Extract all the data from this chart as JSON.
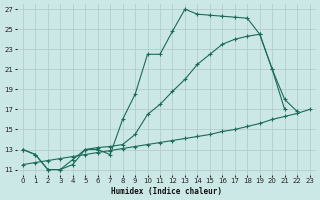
{
  "xlabel": "Humidex (Indice chaleur)",
  "background_color": "#cce8e6",
  "grid_color": "#b0c8c6",
  "line_color": "#1a6b5a",
  "xlim": [
    -0.5,
    23.5
  ],
  "ylim": [
    10.5,
    27.5
  ],
  "yticks": [
    11,
    13,
    15,
    17,
    19,
    21,
    23,
    25,
    27
  ],
  "xticks": [
    0,
    1,
    2,
    3,
    4,
    5,
    6,
    7,
    8,
    9,
    10,
    11,
    12,
    13,
    14,
    15,
    16,
    17,
    18,
    19,
    20,
    21,
    22,
    23
  ],
  "series1_x": [
    0,
    1,
    2,
    3,
    4,
    5,
    6,
    7,
    8,
    9,
    10,
    11,
    12,
    13,
    14,
    15,
    16,
    17,
    18,
    19,
    20,
    21
  ],
  "series1_y": [
    13.0,
    12.5,
    11.0,
    11.0,
    12.0,
    13.0,
    13.0,
    12.5,
    16.0,
    18.5,
    22.5,
    22.5,
    24.8,
    27.0,
    26.5,
    26.4,
    26.3,
    26.2,
    26.1,
    24.5,
    21.0,
    17.0
  ],
  "series2_x": [
    0,
    1,
    2,
    3,
    4,
    5,
    6,
    7,
    8,
    9,
    10,
    11,
    12,
    13,
    14,
    15,
    16,
    17,
    18,
    19,
    20,
    21,
    22
  ],
  "series2_y": [
    13.0,
    12.5,
    11.0,
    11.0,
    11.5,
    13.0,
    13.2,
    13.3,
    13.5,
    14.5,
    16.5,
    17.5,
    18.8,
    20.0,
    21.5,
    22.5,
    23.5,
    24.0,
    24.3,
    24.5,
    21.0,
    18.0,
    16.8
  ],
  "series3_x": [
    0,
    1,
    2,
    3,
    4,
    5,
    6,
    7,
    8,
    9,
    10,
    11,
    12,
    13,
    14,
    15,
    16,
    17,
    18,
    19,
    20,
    21,
    22,
    23
  ],
  "series3_y": [
    11.5,
    11.7,
    11.9,
    12.1,
    12.3,
    12.5,
    12.7,
    12.9,
    13.1,
    13.3,
    13.5,
    13.7,
    13.9,
    14.1,
    14.3,
    14.5,
    14.8,
    15.0,
    15.3,
    15.6,
    16.0,
    16.3,
    16.6,
    17.0
  ]
}
